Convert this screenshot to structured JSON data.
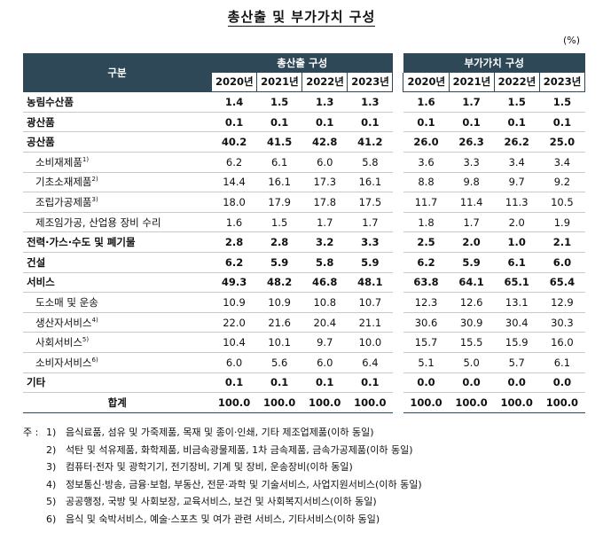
{
  "title": "총산출 및 부가가치 구성",
  "unit": "(%)",
  "header": {
    "category": "구분",
    "group1": "총산출 구성",
    "group2": "부가가치 구성",
    "years": [
      "2020년",
      "2021년",
      "2022년",
      "2023년"
    ]
  },
  "rows": [
    {
      "label": "농림수산품",
      "sup": "",
      "type": "major",
      "output": [
        "1.4",
        "1.5",
        "1.3",
        "1.3"
      ],
      "value_added": [
        "1.6",
        "1.7",
        "1.5",
        "1.5"
      ]
    },
    {
      "label": "광산품",
      "sup": "",
      "type": "major",
      "output": [
        "0.1",
        "0.1",
        "0.1",
        "0.1"
      ],
      "value_added": [
        "0.1",
        "0.1",
        "0.1",
        "0.1"
      ]
    },
    {
      "label": "공산품",
      "sup": "",
      "type": "major",
      "output": [
        "40.2",
        "41.5",
        "42.8",
        "41.2"
      ],
      "value_added": [
        "26.0",
        "26.3",
        "26.2",
        "25.0"
      ]
    },
    {
      "label": "소비재제품",
      "sup": "1)",
      "type": "sub",
      "output": [
        "6.2",
        "6.1",
        "6.0",
        "5.8"
      ],
      "value_added": [
        "3.6",
        "3.3",
        "3.4",
        "3.4"
      ]
    },
    {
      "label": "기초소재제품",
      "sup": "2)",
      "type": "sub",
      "output": [
        "14.4",
        "16.1",
        "17.3",
        "16.1"
      ],
      "value_added": [
        "8.8",
        "9.8",
        "9.7",
        "9.2"
      ]
    },
    {
      "label": "조립가공제품",
      "sup": "3)",
      "type": "sub",
      "output": [
        "18.0",
        "17.9",
        "17.8",
        "17.5"
      ],
      "value_added": [
        "11.7",
        "11.4",
        "11.3",
        "10.5"
      ]
    },
    {
      "label": "제조임가공, 산업용 장비 수리",
      "sup": "",
      "type": "sub",
      "output": [
        "1.6",
        "1.5",
        "1.7",
        "1.7"
      ],
      "value_added": [
        "1.8",
        "1.7",
        "2.0",
        "1.9"
      ]
    },
    {
      "label": "전력·가스·수도 및 폐기물",
      "sup": "",
      "type": "major",
      "output": [
        "2.8",
        "2.8",
        "3.2",
        "3.3"
      ],
      "value_added": [
        "2.5",
        "2.0",
        "1.0",
        "2.1"
      ]
    },
    {
      "label": "건설",
      "sup": "",
      "type": "major",
      "output": [
        "6.2",
        "5.9",
        "5.8",
        "5.9"
      ],
      "value_added": [
        "6.2",
        "5.9",
        "6.1",
        "6.0"
      ]
    },
    {
      "label": "서비스",
      "sup": "",
      "type": "major",
      "output": [
        "49.3",
        "48.2",
        "46.8",
        "48.1"
      ],
      "value_added": [
        "63.8",
        "64.1",
        "65.1",
        "65.4"
      ]
    },
    {
      "label": "도소매 및 운송",
      "sup": "",
      "type": "sub",
      "output": [
        "10.9",
        "10.9",
        "10.8",
        "10.7"
      ],
      "value_added": [
        "12.3",
        "12.6",
        "13.1",
        "12.9"
      ]
    },
    {
      "label": "생산자서비스",
      "sup": "4)",
      "type": "sub",
      "output": [
        "22.0",
        "21.6",
        "20.4",
        "21.1"
      ],
      "value_added": [
        "30.6",
        "30.9",
        "30.4",
        "30.3"
      ]
    },
    {
      "label": "사회서비스",
      "sup": "5)",
      "type": "sub",
      "output": [
        "10.4",
        "10.1",
        "9.7",
        "10.0"
      ],
      "value_added": [
        "15.7",
        "15.5",
        "15.9",
        "16.0"
      ]
    },
    {
      "label": "소비자서비스",
      "sup": "6)",
      "type": "sub",
      "output": [
        "6.0",
        "5.6",
        "6.0",
        "6.4"
      ],
      "value_added": [
        "5.1",
        "5.0",
        "5.7",
        "6.1"
      ]
    },
    {
      "label": "기타",
      "sup": "",
      "type": "major",
      "output": [
        "0.1",
        "0.1",
        "0.1",
        "0.1"
      ],
      "value_added": [
        "0.0",
        "0.0",
        "0.0",
        "0.0"
      ]
    }
  ],
  "total": {
    "label": "합계",
    "output": [
      "100.0",
      "100.0",
      "100.0",
      "100.0"
    ],
    "value_added": [
      "100.0",
      "100.0",
      "100.0",
      "100.0"
    ]
  },
  "notes": {
    "prefix": "주 :",
    "items": [
      {
        "num": "1)",
        "text": "음식료품, 섬유 및 가죽제품, 목재 및 종이·인쇄, 기타 제조업제품(이하 동일)"
      },
      {
        "num": "2)",
        "text": "석탄 및 석유제품, 화학제품, 비금속광물제품, 1차 금속제품, 금속가공제품(이하 동일)"
      },
      {
        "num": "3)",
        "text": "컴퓨터·전자 및 광학기기, 전기장비, 기계 및 장비, 운송장비(이하 동일)"
      },
      {
        "num": "4)",
        "text": "정보통신·방송, 금융·보험, 부동산, 전문·과학 및 기술서비스, 사업지원서비스(이하 동일)"
      },
      {
        "num": "5)",
        "text": "공공행정, 국방 및 사회보장, 교육서비스, 보건 및 사회복지서비스(이하 동일)"
      },
      {
        "num": "6)",
        "text": "음식 및 숙박서비스, 예술·스포츠 및 여가 관련 서비스, 기타서비스(이하 동일)"
      }
    ]
  }
}
